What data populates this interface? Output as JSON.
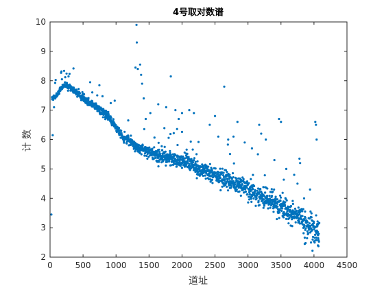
{
  "chart_data": {
    "type": "scatter",
    "title": "4号取对数谱",
    "xlabel": "道址",
    "ylabel": "计 数",
    "xlim": [
      0,
      4500
    ],
    "ylim": [
      2,
      10
    ],
    "x_ticks": [
      0,
      500,
      1000,
      1500,
      2000,
      2500,
      3000,
      3500,
      4000,
      4500
    ],
    "y_ticks": [
      2,
      3,
      4,
      5,
      6,
      7,
      8,
      9,
      10
    ],
    "grid": false,
    "legend": "none",
    "marker_color": "#0072BD",
    "trend_knots": [
      [
        30,
        7.4
      ],
      [
        100,
        7.5
      ],
      [
        200,
        7.85
      ],
      [
        300,
        7.8
      ],
      [
        500,
        7.4
      ],
      [
        700,
        7.1
      ],
      [
        900,
        6.75
      ],
      [
        1000,
        6.4
      ],
      [
        1100,
        6.1
      ],
      [
        1200,
        5.95
      ],
      [
        1300,
        5.75
      ],
      [
        1500,
        5.55
      ],
      [
        1700,
        5.45
      ],
      [
        1900,
        5.3
      ],
      [
        2100,
        5.25
      ],
      [
        2200,
        5.05
      ],
      [
        2400,
        4.85
      ],
      [
        2600,
        4.7
      ],
      [
        2800,
        4.5
      ],
      [
        3000,
        4.3
      ],
      [
        3200,
        4.05
      ],
      [
        3400,
        3.85
      ],
      [
        3600,
        3.55
      ],
      [
        3800,
        3.3
      ],
      [
        4000,
        3.0
      ],
      [
        4080,
        2.75
      ]
    ],
    "outlier_points": [
      [
        20,
        3.45
      ],
      [
        40,
        6.15
      ],
      [
        60,
        7.1
      ],
      [
        180,
        8.05
      ],
      [
        230,
        8.12
      ],
      [
        280,
        8.15
      ],
      [
        1295,
        8.45
      ],
      [
        1310,
        9.9
      ],
      [
        1315,
        9.3
      ],
      [
        1330,
        8.4
      ],
      [
        1365,
        8.55
      ],
      [
        1380,
        8.2
      ],
      [
        1395,
        7.9
      ],
      [
        1420,
        7.4
      ],
      [
        1450,
        6.7
      ],
      [
        1520,
        6.9
      ],
      [
        1640,
        7.2
      ],
      [
        1760,
        7.1
      ],
      [
        1830,
        8.15
      ],
      [
        1900,
        7.0
      ],
      [
        1950,
        6.7
      ],
      [
        2000,
        6.9
      ],
      [
        2110,
        7.0
      ],
      [
        2180,
        6.9
      ],
      [
        2420,
        6.5
      ],
      [
        2500,
        6.8
      ],
      [
        2550,
        6.1
      ],
      [
        2640,
        7.8
      ],
      [
        2700,
        6.0
      ],
      [
        2780,
        6.1
      ],
      [
        2840,
        6.6
      ],
      [
        2950,
        5.9
      ],
      [
        3060,
        5.7
      ],
      [
        3150,
        5.5
      ],
      [
        3170,
        6.5
      ],
      [
        3200,
        6.2
      ],
      [
        3270,
        6.0
      ],
      [
        3400,
        5.3
      ],
      [
        3470,
        6.7
      ],
      [
        3500,
        6.6
      ],
      [
        3580,
        5.0
      ],
      [
        3700,
        4.8
      ],
      [
        3750,
        4.5
      ],
      [
        3780,
        5.35
      ],
      [
        3790,
        5.2
      ],
      [
        3850,
        4.0
      ],
      [
        3860,
        2.45
      ],
      [
        3940,
        4.3
      ],
      [
        4020,
        6.6
      ],
      [
        4030,
        6.5
      ],
      [
        4040,
        6.0
      ],
      [
        4060,
        2.4
      ]
    ]
  }
}
